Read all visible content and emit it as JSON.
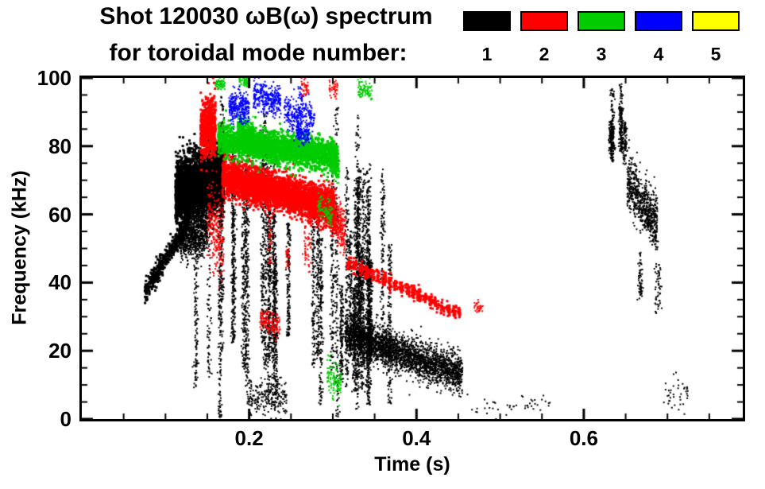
{
  "title": {
    "line1": "Shot 120030 ωB(ω) spectrum",
    "line2": "for toroidal mode number:"
  },
  "legend": {
    "entries": [
      {
        "label": "1",
        "color": "#000000"
      },
      {
        "label": "2",
        "color": "#ff0000"
      },
      {
        "label": "3",
        "color": "#00cc00"
      },
      {
        "label": "4",
        "color": "#0000ff"
      },
      {
        "label": "5",
        "color": "#ffff00"
      }
    ]
  },
  "chart_data": {
    "type": "scatter",
    "title": "Shot 120030 ωB(ω) spectrum for toroidal mode number",
    "xlabel": "Time (s)",
    "ylabel": "Frequency (kHz)",
    "xlim": [
      0.0,
      0.79
    ],
    "ylim": [
      0,
      100
    ],
    "xticks": [
      0.2,
      0.4,
      0.6
    ],
    "xtick_labels": [
      "0.2",
      "0.4",
      "0.6"
    ],
    "yticks": [
      0,
      20,
      40,
      60,
      80,
      100
    ],
    "ytick_labels": [
      "0",
      "20",
      "40",
      "60",
      "80",
      "100"
    ],
    "x_minor_step": 0.05,
    "y_minor_step": 5,
    "grid": false,
    "legend_position": "top-right",
    "series": [
      {
        "name": "1",
        "color": "#000000",
        "clusters": [
          {
            "kind": "chirp",
            "t0": 0.075,
            "t1": 0.128,
            "f0": 37,
            "f1": 58,
            "jitter": 1.6,
            "n": 450,
            "size": 3
          },
          {
            "kind": "blob",
            "t0": 0.112,
            "t1": 0.17,
            "f0": 66,
            "f1": 71,
            "hw": 11,
            "n": 3200,
            "size": 3
          },
          {
            "kind": "blob",
            "t0": 0.118,
            "t1": 0.15,
            "f0": 52,
            "f1": 55,
            "hw": 7,
            "n": 700,
            "size": 2
          },
          {
            "kind": "vstreaks",
            "t0": 0.13,
            "t1": 0.35,
            "f0": 0,
            "f1": 100,
            "k": 26,
            "m": 160,
            "size": 2
          },
          {
            "kind": "vstreaks",
            "t0": 0.31,
            "t1": 0.368,
            "f0": 0,
            "f1": 80,
            "k": 14,
            "m": 150,
            "size": 2
          },
          {
            "kind": "blob",
            "t0": 0.315,
            "t1": 0.455,
            "f0": 25,
            "f1": 13,
            "hw": 6,
            "n": 2600,
            "size": 2
          },
          {
            "kind": "blob",
            "t0": 0.2,
            "t1": 0.245,
            "f0": 6,
            "f1": 6,
            "hw": 6,
            "n": 200,
            "size": 2
          },
          {
            "kind": "vstreaks",
            "t0": 0.622,
            "t1": 0.652,
            "f0": 72,
            "f1": 100,
            "k": 6,
            "m": 80,
            "size": 2
          },
          {
            "kind": "blob",
            "t0": 0.652,
            "t1": 0.688,
            "f0": 70,
            "f1": 57,
            "hw": 9,
            "n": 650,
            "size": 2
          },
          {
            "kind": "vstreaks",
            "t0": 0.66,
            "t1": 0.692,
            "f0": 30,
            "f1": 55,
            "k": 4,
            "m": 30,
            "size": 2
          },
          {
            "kind": "blob",
            "t0": 0.455,
            "t1": 0.56,
            "f0": 4,
            "f1": 4,
            "hw": 4,
            "n": 45,
            "size": 2
          },
          {
            "kind": "blob",
            "t0": 0.695,
            "t1": 0.725,
            "f0": 7,
            "f1": 7,
            "hw": 6,
            "n": 40,
            "size": 2
          }
        ]
      },
      {
        "name": "2",
        "color": "#ff0000",
        "clusters": [
          {
            "kind": "blob",
            "t0": 0.142,
            "t1": 0.16,
            "f0": 84,
            "f1": 86,
            "hw": 9,
            "n": 650,
            "size": 3
          },
          {
            "kind": "blob",
            "t0": 0.15,
            "t1": 0.17,
            "f0": 60,
            "f1": 50,
            "hw": 14,
            "n": 240,
            "size": 2
          },
          {
            "kind": "blob",
            "t0": 0.168,
            "t1": 0.302,
            "f0": 71,
            "f1": 62,
            "hw": 6,
            "n": 3600,
            "size": 3
          },
          {
            "kind": "blob",
            "t0": 0.298,
            "t1": 0.315,
            "f0": 60,
            "f1": 55,
            "hw": 7,
            "n": 260,
            "size": 2
          },
          {
            "kind": "chirp",
            "t0": 0.316,
            "t1": 0.452,
            "f0": 46,
            "f1": 31,
            "jitter": 1.1,
            "n": 650,
            "size": 3,
            "dash": true
          },
          {
            "kind": "blob",
            "t0": 0.213,
            "t1": 0.237,
            "f0": 29,
            "f1": 27,
            "hw": 4,
            "n": 130,
            "size": 2
          },
          {
            "kind": "blob",
            "t0": 0.468,
            "t1": 0.48,
            "f0": 33,
            "f1": 33,
            "hw": 2,
            "n": 30,
            "size": 2
          },
          {
            "kind": "blob",
            "t0": 0.262,
            "t1": 0.272,
            "f0": 97,
            "f1": 97,
            "hw": 3,
            "n": 40,
            "size": 2
          },
          {
            "kind": "blob",
            "t0": 0.296,
            "t1": 0.306,
            "f0": 97,
            "f1": 97,
            "hw": 3,
            "n": 40,
            "size": 2
          },
          {
            "kind": "vstreaks",
            "t0": 0.225,
            "t1": 0.3,
            "f0": 40,
            "f1": 60,
            "k": 4,
            "m": 25,
            "size": 2
          }
        ]
      },
      {
        "name": "3",
        "color": "#00cc00",
        "clusters": [
          {
            "kind": "blob",
            "t0": 0.163,
            "t1": 0.306,
            "f0": 82,
            "f1": 77,
            "hw": 5,
            "n": 2600,
            "size": 3
          },
          {
            "kind": "blob",
            "t0": 0.186,
            "t1": 0.205,
            "f0": 86,
            "f1": 84,
            "hw": 4,
            "n": 300,
            "size": 2
          },
          {
            "kind": "blob",
            "t0": 0.16,
            "t1": 0.172,
            "f0": 98,
            "f1": 98,
            "hw": 2,
            "n": 60,
            "size": 2
          },
          {
            "kind": "blob",
            "t0": 0.188,
            "t1": 0.2,
            "f0": 99,
            "f1": 99,
            "hw": 2,
            "n": 50,
            "size": 2
          },
          {
            "kind": "blob",
            "t0": 0.33,
            "t1": 0.347,
            "f0": 97,
            "f1": 96,
            "hw": 3,
            "n": 80,
            "size": 2
          },
          {
            "kind": "blob",
            "t0": 0.293,
            "t1": 0.31,
            "f0": 13,
            "f1": 10,
            "hw": 6,
            "n": 110,
            "size": 2
          },
          {
            "kind": "blob",
            "t0": 0.282,
            "t1": 0.3,
            "f0": 63,
            "f1": 60,
            "hw": 4,
            "n": 90,
            "size": 2
          },
          {
            "kind": "blob",
            "t0": 0.296,
            "t1": 0.308,
            "f0": 75,
            "f1": 72,
            "hw": 4,
            "n": 120,
            "size": 2
          }
        ]
      },
      {
        "name": "4",
        "color": "#0000ff",
        "clusters": [
          {
            "kind": "blob",
            "t0": 0.176,
            "t1": 0.2,
            "f0": 92,
            "f1": 91,
            "hw": 5,
            "n": 280,
            "size": 2
          },
          {
            "kind": "blob",
            "t0": 0.205,
            "t1": 0.238,
            "f0": 95,
            "f1": 93,
            "hw": 5,
            "n": 300,
            "size": 2
          },
          {
            "kind": "blob",
            "t0": 0.242,
            "t1": 0.278,
            "f0": 90,
            "f1": 88,
            "hw": 5,
            "n": 240,
            "size": 2
          },
          {
            "kind": "blob",
            "t0": 0.258,
            "t1": 0.272,
            "f0": 84,
            "f1": 83,
            "hw": 3,
            "n": 80,
            "size": 2
          },
          {
            "kind": "vstreaks",
            "t0": 0.252,
            "t1": 0.262,
            "f0": 80,
            "f1": 100,
            "k": 2,
            "m": 40,
            "size": 2
          }
        ]
      },
      {
        "name": "5",
        "color": "#ffff00",
        "clusters": []
      }
    ]
  }
}
